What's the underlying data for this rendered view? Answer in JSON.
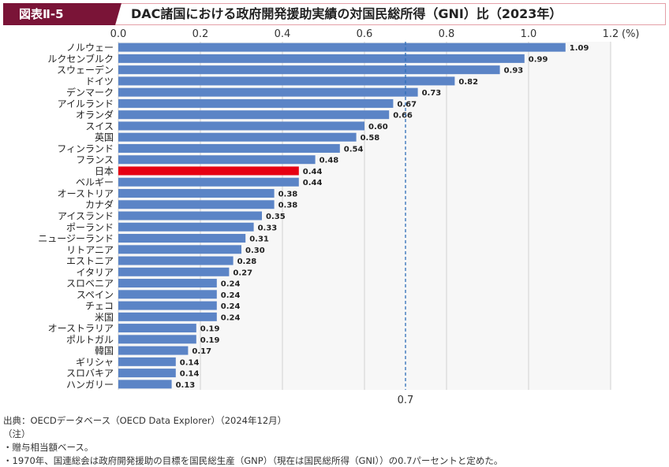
{
  "header": {
    "figure_label": "図表Ⅱ-5",
    "title": "DAC諸国における政府開発援助実績の対国民総所得（GNI）比（2023年）"
  },
  "chart_data": {
    "type": "bar",
    "orientation": "horizontal",
    "categories": [
      "ノルウェー",
      "ルクセンブルク",
      "スウェーデン",
      "ドイツ",
      "デンマーク",
      "アイルランド",
      "オランダ",
      "スイス",
      "英国",
      "フィンランド",
      "フランス",
      "日本",
      "ベルギー",
      "オーストリア",
      "カナダ",
      "アイスランド",
      "ポーランド",
      "ニュージーランド",
      "リトアニア",
      "エストニア",
      "イタリア",
      "スロベニア",
      "スペイン",
      "チェコ",
      "米国",
      "オーストラリア",
      "ポルトガル",
      "韓国",
      "ギリシャ",
      "スロバキア",
      "ハンガリー"
    ],
    "values": [
      1.09,
      0.99,
      0.93,
      0.82,
      0.73,
      0.67,
      0.66,
      0.6,
      0.58,
      0.54,
      0.48,
      0.44,
      0.44,
      0.38,
      0.38,
      0.35,
      0.33,
      0.31,
      0.3,
      0.28,
      0.27,
      0.24,
      0.24,
      0.24,
      0.24,
      0.19,
      0.19,
      0.17,
      0.14,
      0.14,
      0.13
    ],
    "xlim": [
      0,
      1.2
    ],
    "xticks": [
      "0.0",
      "0.2",
      "0.4",
      "0.6",
      "0.8",
      "1.0",
      "1.2"
    ],
    "xunit": "(%)",
    "reference_line": {
      "value": 0.7,
      "label": "0.7"
    },
    "grid": true,
    "colors": {
      "default": "#5b84c6",
      "highlight": "#e60012",
      "highlight_category": "日本",
      "reference": "#2f6fb8"
    }
  },
  "footer": {
    "source": "出典：OECDデータベース（OECD Data Explorer）（2024年12月）",
    "note_label": "（注）",
    "notes": [
      "・贈与相当額ベース。",
      "・1970年、国連総会は政府開発援助の目標を国民総生産（GNP）（現在は国民総所得（GNI））の0.7パーセントと定めた。"
    ]
  }
}
